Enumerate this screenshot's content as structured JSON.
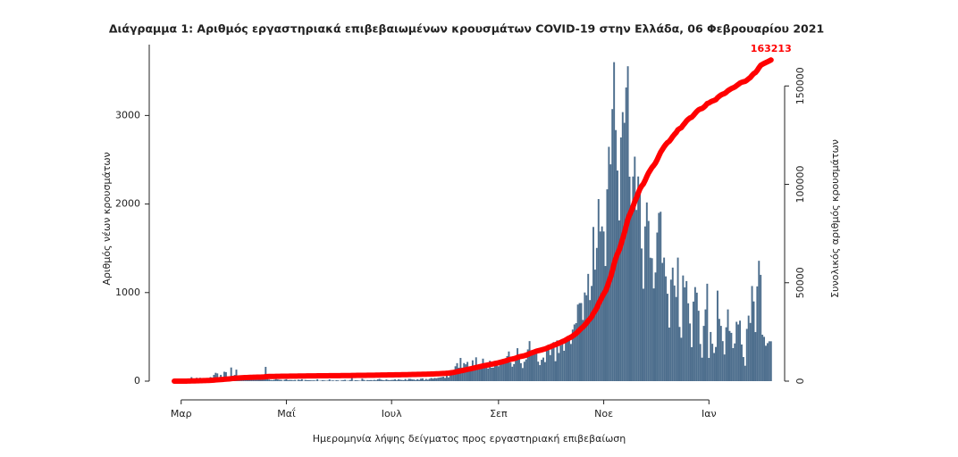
{
  "chart_data": {
    "type": "bar",
    "title": "Διάγραμμα 1: Αριθμός εργαστηριακά επιβεβαιωμένων κρουσμάτων COVID-19 στην Ελλάδα, 06 Φεβρουαρίου 2021",
    "xlabel": "Ημερομηνία λήψης δείγματος προς εργαστηριακή επιβεβαίωση",
    "ylabel": "Αριθμός νέων κρουσμάτων",
    "y2label": "Συνολικός αριθμός κρουσμάτων",
    "ylim": [
      0,
      3800
    ],
    "yticks": [
      0,
      1000,
      2000,
      3000
    ],
    "y2lim": [
      0,
      171000
    ],
    "y2ticks": [
      0,
      50000,
      100000,
      150000
    ],
    "categories": [
      null,
      null,
      null,
      null,
      "Μαρ",
      null,
      null,
      null,
      null,
      null,
      null,
      null,
      null,
      null,
      null,
      null,
      null,
      null,
      null,
      null,
      null,
      null,
      null,
      null,
      null,
      null,
      null,
      null,
      null,
      null,
      null,
      null,
      null,
      null,
      null,
      null,
      null,
      null,
      null,
      null,
      null,
      null,
      null,
      null,
      null,
      null,
      null,
      null,
      null,
      null,
      null,
      null,
      null,
      null,
      null,
      null,
      null,
      null,
      null,
      null,
      null,
      null,
      null,
      null,
      null,
      "Μαΐ",
      null,
      null,
      null,
      null,
      null,
      null,
      null,
      null,
      null,
      null,
      null,
      null,
      null,
      null,
      null,
      null,
      null,
      null,
      null,
      null,
      null,
      null,
      null,
      null,
      null,
      null,
      null,
      null,
      null,
      null,
      null,
      null,
      null,
      null,
      null,
      null,
      null,
      null,
      null,
      null,
      null,
      null,
      null,
      null,
      null,
      null,
      null,
      null,
      null,
      null,
      null,
      null,
      null,
      null,
      null,
      null,
      null,
      null,
      null,
      null,
      "Ιουλ",
      null,
      null,
      null,
      null,
      null,
      null,
      null,
      null,
      null,
      null,
      null,
      null,
      null,
      null,
      null,
      null,
      null,
      null,
      null,
      null,
      null,
      null,
      null,
      null,
      null,
      null,
      null,
      null,
      null,
      null,
      null,
      null,
      null,
      null,
      null,
      null,
      null,
      null,
      null,
      null,
      null,
      null,
      null,
      null,
      null,
      null,
      null,
      null,
      null,
      null,
      null,
      null,
      null,
      null,
      null,
      null,
      null,
      null,
      null,
      null,
      null,
      "Σεπ",
      null,
      null,
      null,
      null,
      null,
      null,
      null,
      null,
      null,
      null,
      null,
      null,
      null,
      null,
      null,
      null,
      null,
      null,
      null,
      null,
      null,
      null,
      null,
      null,
      null,
      null,
      null,
      null,
      null,
      null,
      null,
      null,
      null,
      null,
      null,
      null,
      null,
      null,
      null,
      null,
      null,
      null,
      null,
      null,
      null,
      null,
      null,
      null,
      null,
      null,
      null,
      null,
      null,
      null,
      null,
      null,
      null,
      null,
      null,
      null,
      "Νοε",
      null,
      null,
      null,
      null,
      null,
      null,
      null,
      null,
      null,
      null,
      null,
      null,
      null,
      null,
      null,
      null,
      null,
      null,
      null,
      null,
      null,
      null,
      null,
      null,
      null,
      null,
      null,
      null,
      null,
      null,
      null,
      null,
      null,
      null,
      null,
      null,
      null,
      null,
      null,
      null,
      null,
      null,
      null,
      null,
      null,
      null,
      null,
      null,
      null,
      null,
      null,
      null,
      null,
      null,
      null,
      null,
      null,
      null,
      null,
      null,
      "Ιαν",
      null,
      null,
      null,
      null,
      null,
      null,
      null,
      null,
      null,
      null,
      null,
      null,
      null,
      null,
      null,
      null,
      null,
      null,
      null,
      null,
      null,
      null,
      null,
      null,
      null,
      null,
      null,
      null,
      null,
      null,
      null,
      null,
      null,
      null,
      null,
      null
    ],
    "series": [
      {
        "type": "bar",
        "color": "#4d6e8d",
        "values": [
          1,
          1,
          1,
          3,
          2,
          0,
          7,
          14,
          11,
          12,
          45,
          10,
          11,
          38,
          30,
          38,
          20,
          13,
          35,
          31,
          33,
          46,
          41,
          71,
          94,
          87,
          30,
          71,
          30,
          106,
          102,
          43,
          41,
          154,
          60,
          70,
          130,
          60,
          62,
          56,
          50,
          40,
          43,
          51,
          39,
          20,
          25,
          28,
          17,
          25,
          15,
          21,
          23,
          161,
          73,
          18,
          12,
          10,
          15,
          24,
          19,
          15,
          14,
          4,
          15,
          22,
          10,
          13,
          12,
          9,
          13,
          4,
          16,
          12,
          22,
          3,
          13,
          11,
          10,
          9,
          8,
          9,
          6,
          22,
          3,
          5,
          10,
          8,
          5,
          6,
          20,
          5,
          9,
          3,
          10,
          8,
          2,
          8,
          10,
          15,
          4,
          5,
          13,
          36,
          3,
          11,
          9,
          6,
          4,
          28,
          14,
          5,
          12,
          10,
          12,
          8,
          14,
          9,
          20,
          25,
          16,
          11,
          8,
          19,
          12,
          10,
          13,
          14,
          20,
          9,
          21,
          16,
          13,
          11,
          24,
          9,
          26,
          25,
          19,
          18,
          12,
          21,
          14,
          28,
          31,
          12,
          25,
          16,
          26,
          36,
          28,
          36,
          33,
          38,
          41,
          45,
          50,
          37,
          110,
          42,
          121,
          115,
          124,
          168,
          203,
          151,
          262,
          152,
          204,
          190,
          217,
          163,
          141,
          235,
          161,
          269,
          182,
          190,
          158,
          254,
          177,
          168,
          143,
          230,
          151,
          153,
          219,
          188,
          168,
          232,
          215,
          248,
          225,
          283,
          335,
          210,
          163,
          193,
          259,
          372,
          288,
          203,
          148,
          219,
          245,
          358,
          452,
          294,
          295,
          340,
          342,
          220,
          181,
          241,
          266,
          215,
          360,
          412,
          294,
          367,
          441,
          225,
          460,
          318,
          403,
          424,
          343,
          493,
          508,
          489,
          420,
          582,
          640,
          655,
          865,
          881,
          882,
          691,
          1001,
          970,
          1211,
          915,
          1075,
          1741,
          1259,
          1504,
          2056,
          1690,
          1747,
          1690,
          1300,
          2166,
          2646,
          2448,
          3072,
          3602,
          2835,
          2378,
          1815,
          2752,
          3038,
          2917,
          3316,
          3556,
          2309,
          1913,
          2311,
          2535,
          1933,
          2311,
          2152,
          1498,
          1044,
          1747,
          2018,
          1809,
          1394,
          1388,
          1047,
          1227,
          1678,
          1900,
          1913,
          1335,
          1395,
          1183,
          987,
          605,
          1146,
          1282,
          1080,
          950,
          1395,
          612,
          490,
          1193,
          1059,
          1130,
          879,
          651,
          384,
          898,
          1062,
          999,
          795,
          420,
          265,
          624,
          810,
          1100,
          262,
          555,
          422,
          318,
          386,
          1022,
          703,
          624,
          452,
          301,
          608,
          810,
          567,
          545,
          373,
          426,
          670,
          640,
          683,
          414,
          272,
          174,
          590,
          740,
          657,
          1074,
          900,
          554,
          1070,
          1359,
          1200,
          524,
          500,
          400,
          429,
          450,
          450
        ]
      },
      {
        "type": "line",
        "axis": "y2",
        "color": "#ff0000",
        "values": [
          1,
          2,
          3,
          6,
          8,
          8,
          15,
          29,
          40,
          52,
          97,
          107,
          118,
          156,
          186,
          224,
          244,
          257,
          292,
          323,
          356,
          402,
          443,
          514,
          608,
          695,
          725,
          796,
          826,
          932,
          1034,
          1077,
          1118,
          1272,
          1332,
          1402,
          1532,
          1592,
          1654,
          1710,
          1760,
          1800,
          1843,
          1894,
          1933,
          1953,
          1978,
          2006,
          2023,
          2048,
          2063,
          2084,
          2107,
          2268,
          2341,
          2359,
          2371,
          2381,
          2396,
          2420,
          2439,
          2454,
          2468,
          2472,
          2487,
          2509,
          2519,
          2532,
          2544,
          2553,
          2566,
          2570,
          2586,
          2598,
          2620,
          2623,
          2636,
          2647,
          2657,
          2666,
          2674,
          2683,
          2689,
          2711,
          2714,
          2719,
          2729,
          2737,
          2742,
          2748,
          2768,
          2773,
          2782,
          2785,
          2795,
          2803,
          2805,
          2813,
          2823,
          2838,
          2842,
          2847,
          2860,
          2896,
          2899,
          2910,
          2919,
          2925,
          2929,
          2957,
          2971,
          2976,
          2988,
          2998,
          3010,
          3018,
          3032,
          3041,
          3061,
          3086,
          3102,
          3113,
          3121,
          3140,
          3152,
          3162,
          3175,
          3189,
          3209,
          3218,
          3239,
          3255,
          3268,
          3279,
          3303,
          3312,
          3338,
          3363,
          3382,
          3400,
          3412,
          3433,
          3447,
          3475,
          3506,
          3518,
          3543,
          3559,
          3585,
          3621,
          3649,
          3685,
          3718,
          3756,
          3797,
          3842,
          3892,
          3929,
          4039,
          4081,
          4202,
          4317,
          4441,
          4609,
          4812,
          4963,
          5225,
          5377,
          5581,
          5771,
          5988,
          6151,
          6292,
          6527,
          6688,
          6957,
          7139,
          7329,
          7487,
          7741,
          7918,
          8086,
          8229,
          8459,
          8610,
          8763,
          8982,
          9170,
          9338,
          9570,
          9785,
          10033,
          10258,
          10541,
          10876,
          11086,
          11249,
          11442,
          11701,
          12073,
          12361,
          12564,
          12712,
          12931,
          13176,
          13534,
          13986,
          14280,
          14575,
          14915,
          15257,
          15477,
          15658,
          15899,
          16165,
          16380,
          16740,
          17152,
          17446,
          17813,
          18254,
          18479,
          18939,
          19257,
          19660,
          20084,
          20427,
          20920,
          21428,
          21917,
          22337,
          22919,
          23559,
          24214,
          25079,
          25960,
          26842,
          27533,
          28534,
          29504,
          30715,
          31630,
          32705,
          34446,
          35705,
          37209,
          39265,
          40955,
          42702,
          44392,
          45692,
          47858,
          50504,
          52952,
          56024,
          59626,
          62461,
          64839,
          66654,
          69406,
          72444,
          75361,
          78677,
          82233,
          84542,
          86455,
          88766,
          91301,
          93234,
          95545,
          97697,
          99195,
          100239,
          101986,
          104004,
          105813,
          107207,
          108595,
          109642,
          110869,
          112547,
          114447,
          116360,
          117695,
          119090,
          120273,
          121260,
          121865,
          123011,
          124293,
          125373,
          126323,
          127718,
          128330,
          128820,
          130013,
          131072,
          132202,
          133081,
          133732,
          134116,
          135014,
          136076,
          137075,
          137870,
          138290,
          138555,
          139179,
          139989,
          141089,
          141351,
          141906,
          142328,
          142646,
          143032,
          144054,
          144757,
          145381,
          145833,
          146134,
          146742,
          147552,
          148119,
          148664,
          149037,
          149463,
          150133,
          150773,
          151456,
          151870,
          152142,
          152316,
          152906,
          153646,
          154303,
          155377,
          156277,
          156831,
          157901,
          159260,
          160460,
          160984,
          161484,
          161884,
          162313,
          162763,
          163213
        ]
      }
    ]
  }
}
